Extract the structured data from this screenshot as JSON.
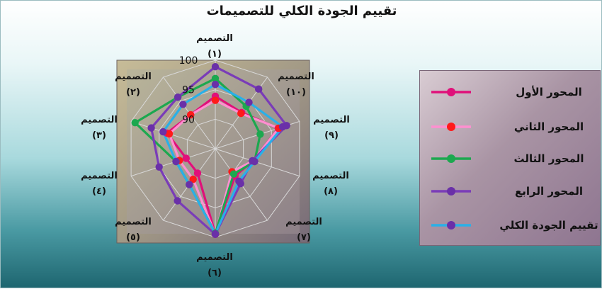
{
  "chart_data": {
    "type": "radar",
    "title": "تقييم الجودة الكلي للتصميمات",
    "categories": [
      {
        "name": "التصميم",
        "num": "(١)"
      },
      {
        "name": "التصميم",
        "num": "(١٠)"
      },
      {
        "name": "التصميم",
        "num": "(٩)"
      },
      {
        "name": "التصميم",
        "num": "(٨)"
      },
      {
        "name": "التصميم",
        "num": "(٧)"
      },
      {
        "name": "التصميم",
        "num": "(٦)"
      },
      {
        "name": "التصميم",
        "num": "(٥)"
      },
      {
        "name": "التصميم",
        "num": "(٤)"
      },
      {
        "name": "التصميم",
        "num": "(٣)"
      },
      {
        "name": "التصميم",
        "num": "(٢)"
      }
    ],
    "rlim": [
      85,
      100
    ],
    "ticks": [
      "90",
      "95",
      "100"
    ],
    "grid": true,
    "legend_position": "right",
    "series": [
      {
        "name": "المحور الأول",
        "values": [
          93.9,
          92.6,
          96.2,
          91.7,
          90.7,
          99.4,
          90.1,
          90.2,
          93.6,
          92.1
        ],
        "color": "#e0107a",
        "marker": "#e0107a"
      },
      {
        "name": "المحور الثاني",
        "values": [
          93.2,
          92.4,
          96.3,
          91.7,
          89.8,
          99.5,
          91.4,
          91.4,
          93.2,
          92.1
        ],
        "color": "#ff8fd0",
        "marker": "#ff1a1a"
      },
      {
        "name": "المحور الثالث",
        "values": [
          96.9,
          93.9,
          93.0,
          92.0,
          90.3,
          99.3,
          92.5,
          92.0,
          99.3,
          95.8
        ],
        "color": "#1ca84f",
        "marker": "#1ca84f"
      },
      {
        "name": "المحور الرابع",
        "values": [
          98.9,
          97.5,
          97.7,
          91.6,
          92.3,
          99.5,
          95.9,
          95.0,
          96.4,
          95.8
        ],
        "color": "#7a3cb8",
        "marker": "#6a30a8"
      },
      {
        "name": "تقييم الجودة الكلي",
        "values": [
          95.9,
          94.7,
          97.0,
          92.0,
          91.8,
          99.4,
          92.5,
          92.0,
          94.3,
          94.3
        ],
        "color": "#29b0e8",
        "marker": "#6a30a8"
      }
    ]
  }
}
